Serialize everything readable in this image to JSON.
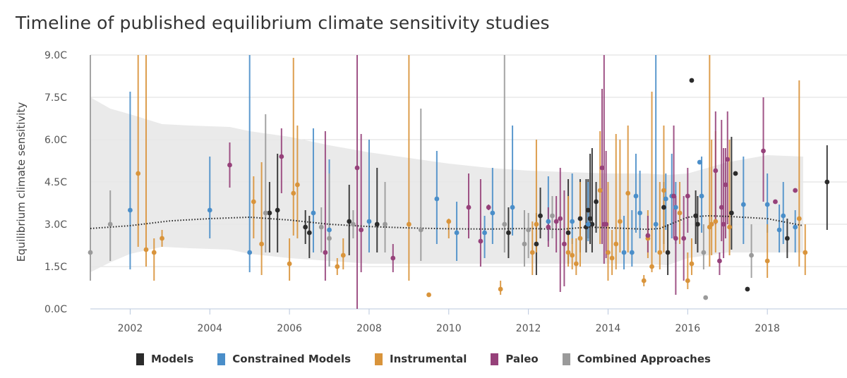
{
  "chart_data": {
    "type": "scatter",
    "title": "Timeline of published equilibrium climate sensitivity studies",
    "ylabel": "Equilibrium climate sensitivity",
    "xlabel": "",
    "xlim": [
      2001.0,
      2020.0
    ],
    "ylim": [
      0,
      9
    ],
    "x_ticks": [
      "2002",
      "2004",
      "2006",
      "2008",
      "2010",
      "2012",
      "2014",
      "2016",
      "2018"
    ],
    "y_ticks": [
      "0.0C",
      "1.5C",
      "3.0C",
      "4.5C",
      "6.0C",
      "7.5C",
      "9.0C"
    ],
    "grid": "horizontal",
    "legend_position": "bottom",
    "colors": {
      "Models": "#2b2b2b",
      "Constrained Models": "#4a8ec9",
      "Instrumental": "#d9943b",
      "Paleo": "#96417a",
      "Combined Approaches": "#9a9a9a",
      "band": "#e6e6e6",
      "trend": "#222222"
    },
    "legend": [
      "Models",
      "Constrained Models",
      "Instrumental",
      "Paleo",
      "Combined Approaches"
    ],
    "band": {
      "x": [
        2001.0,
        2001.5,
        2002.0,
        2002.8,
        2003.5,
        2004.5,
        2005.0,
        2006.0,
        2007.0,
        2008.0,
        2009.0,
        2010.0,
        2011.0,
        2012.0,
        2013.0,
        2014.0,
        2015.0,
        2015.5,
        2016.0,
        2017.0,
        2018.0,
        2018.9
      ],
      "upper": [
        7.5,
        7.1,
        6.9,
        6.55,
        6.5,
        6.45,
        6.3,
        6.1,
        5.8,
        5.55,
        5.35,
        5.15,
        5.0,
        4.9,
        4.85,
        4.8,
        4.8,
        4.75,
        4.8,
        5.2,
        5.45,
        5.4
      ],
      "lower": [
        1.3,
        1.65,
        1.95,
        2.2,
        2.15,
        2.1,
        1.95,
        1.8,
        1.7,
        1.6,
        1.6,
        1.6,
        1.6,
        1.6,
        1.6,
        1.6,
        1.6,
        1.55,
        1.8,
        2.0,
        2.0,
        2.0
      ]
    },
    "trend": {
      "x": [
        2001.0,
        2002.0,
        2003.0,
        2004.0,
        2005.0,
        2006.0,
        2007.0,
        2008.0,
        2009.0,
        2010.0,
        2011.0,
        2012.0,
        2012.8,
        2013.5,
        2014.5,
        2015.0,
        2015.3,
        2016.0,
        2016.5,
        2017.0,
        2018.0,
        2018.9
      ],
      "y": [
        2.85,
        2.95,
        3.12,
        3.2,
        3.25,
        3.15,
        3.0,
        2.92,
        2.87,
        2.84,
        2.83,
        2.85,
        2.82,
        2.9,
        2.85,
        2.82,
        2.85,
        3.25,
        3.3,
        3.28,
        3.2,
        2.95
      ]
    },
    "series": [
      {
        "name": "Models",
        "points": [
          [
            2005.5,
            3.4,
            2.0,
            4.5
          ],
          [
            2005.7,
            3.5,
            2.0,
            5.5
          ],
          [
            2006.4,
            2.9,
            2.3,
            3.5
          ],
          [
            2006.5,
            2.7,
            1.8,
            3.3
          ],
          [
            2007.5,
            3.1,
            1.9,
            4.4
          ],
          [
            2008.2,
            3.0,
            2.0,
            5.0
          ],
          [
            2011.5,
            2.7,
            1.8,
            3.6
          ],
          [
            2012.2,
            2.3,
            1.2,
            3.4
          ],
          [
            2012.3,
            3.3,
            2.5,
            4.3
          ],
          [
            2013.0,
            2.7,
            1.6,
            4.6
          ],
          [
            2013.3,
            3.2,
            2.0,
            4.6
          ],
          [
            2013.45,
            2.9,
            2.0,
            4.6
          ],
          [
            2013.5,
            3.5,
            2.5,
            4.6
          ],
          [
            2013.55,
            3.2,
            2.3,
            5.5
          ],
          [
            2013.6,
            3.0,
            2.0,
            5.7
          ],
          [
            2013.7,
            3.8,
            2.7,
            4.5
          ],
          [
            2015.4,
            3.6,
            2.3,
            4.5
          ],
          [
            2015.5,
            2.0,
            1.2,
            3.0
          ],
          [
            2016.1,
            8.1,
            8.1,
            8.1
          ],
          [
            2016.2,
            3.3,
            2.3,
            4.2
          ],
          [
            2016.25,
            3.0,
            2.0,
            4.0
          ],
          [
            2017.1,
            3.4,
            2.1,
            6.1
          ],
          [
            2017.2,
            4.8,
            4.8,
            4.8
          ],
          [
            2017.5,
            0.7,
            0.7,
            0.7
          ],
          [
            2018.5,
            2.5,
            1.8,
            3.2
          ],
          [
            2019.5,
            4.5,
            2.8,
            5.8
          ]
        ]
      },
      {
        "name": "Constrained Models",
        "points": [
          [
            2002.0,
            3.5,
            1.4,
            7.7
          ],
          [
            2004.0,
            3.5,
            2.5,
            5.4
          ],
          [
            2005.0,
            2.0,
            1.3,
            9.0
          ],
          [
            2006.6,
            3.4,
            2.0,
            6.4
          ],
          [
            2007.0,
            2.8,
            1.5,
            5.3
          ],
          [
            2008.0,
            3.1,
            2.0,
            6.0
          ],
          [
            2009.7,
            3.9,
            2.3,
            5.6
          ],
          [
            2010.2,
            2.7,
            1.7,
            3.8
          ],
          [
            2010.9,
            2.7,
            1.8,
            3.3
          ],
          [
            2011.1,
            3.4,
            2.3,
            5.0
          ],
          [
            2011.6,
            3.6,
            2.6,
            6.5
          ],
          [
            2012.5,
            3.1,
            2.4,
            4.7
          ],
          [
            2013.1,
            3.1,
            2.3,
            4.8
          ],
          [
            2013.5,
            3.0,
            2.4,
            4.5
          ],
          [
            2014.4,
            2.0,
            1.4,
            3.3
          ],
          [
            2014.6,
            2.0,
            1.5,
            3.5
          ],
          [
            2014.7,
            4.0,
            2.7,
            5.5
          ],
          [
            2014.8,
            3.4,
            2.5,
            4.9
          ],
          [
            2015.2,
            3.0,
            2.0,
            9.0
          ],
          [
            2015.45,
            3.9,
            2.8,
            4.8
          ],
          [
            2015.6,
            4.0,
            2.5,
            5.5
          ],
          [
            2015.7,
            3.6,
            2.3,
            4.5
          ],
          [
            2016.3,
            5.2,
            5.2,
            5.2
          ],
          [
            2016.35,
            4.0,
            2.7,
            5.4
          ],
          [
            2017.4,
            3.7,
            2.3,
            5.4
          ],
          [
            2018.0,
            3.7,
            2.7,
            4.8
          ],
          [
            2018.3,
            2.8,
            2.0,
            3.7
          ],
          [
            2018.4,
            3.3,
            2.3,
            4.5
          ],
          [
            2018.7,
            2.9,
            2.0,
            3.5
          ]
        ]
      },
      {
        "name": "Instrumental",
        "points": [
          [
            2002.2,
            4.8,
            2.2,
            9.0
          ],
          [
            2002.4,
            2.1,
            1.5,
            9.0
          ],
          [
            2002.6,
            2.0,
            1.0,
            2.5
          ],
          [
            2002.8,
            2.5,
            2.2,
            2.8
          ],
          [
            2005.1,
            3.8,
            2.5,
            4.7
          ],
          [
            2005.3,
            2.3,
            1.2,
            5.2
          ],
          [
            2006.0,
            1.6,
            1.0,
            2.5
          ],
          [
            2006.1,
            4.1,
            2.6,
            8.9
          ],
          [
            2006.2,
            4.4,
            2.5,
            6.5
          ],
          [
            2007.2,
            1.5,
            1.2,
            1.8
          ],
          [
            2007.35,
            1.9,
            1.4,
            2.5
          ],
          [
            2009.0,
            3.0,
            1.0,
            9.0
          ],
          [
            2009.5,
            0.5,
            0.5,
            0.5
          ],
          [
            2010.0,
            3.1,
            2.5,
            3.2
          ],
          [
            2011.3,
            0.7,
            0.5,
            1.0
          ],
          [
            2012.1,
            2.0,
            1.2,
            3.1
          ],
          [
            2012.2,
            3.0,
            2.0,
            6.0
          ],
          [
            2013.0,
            2.0,
            1.5,
            4.0
          ],
          [
            2013.1,
            1.9,
            1.4,
            2.5
          ],
          [
            2013.2,
            1.6,
            1.2,
            2.5
          ],
          [
            2013.3,
            2.5,
            1.5,
            4.5
          ],
          [
            2013.8,
            4.2,
            2.3,
            6.3
          ],
          [
            2014.0,
            2.0,
            1.0,
            4.5
          ],
          [
            2014.1,
            1.8,
            1.2,
            2.8
          ],
          [
            2014.2,
            2.3,
            1.4,
            6.2
          ],
          [
            2014.3,
            3.1,
            2.0,
            6.0
          ],
          [
            2014.5,
            4.1,
            2.0,
            6.5
          ],
          [
            2014.9,
            1.0,
            0.8,
            1.2
          ],
          [
            2015.0,
            2.5,
            1.8,
            3.5
          ],
          [
            2015.1,
            1.5,
            1.3,
            7.7
          ],
          [
            2015.3,
            2.0,
            1.4,
            4.5
          ],
          [
            2015.4,
            4.2,
            2.0,
            6.5
          ],
          [
            2015.8,
            3.4,
            2.3,
            4.5
          ],
          [
            2016.0,
            1.0,
            0.7,
            2.0
          ],
          [
            2016.1,
            1.6,
            1.2,
            2.5
          ],
          [
            2016.55,
            2.9,
            1.5,
            9.0
          ],
          [
            2016.6,
            3.0,
            1.9,
            6.0
          ],
          [
            2016.7,
            3.1,
            2.0,
            6.3
          ],
          [
            2017.05,
            2.9,
            1.9,
            6.0
          ],
          [
            2018.0,
            1.7,
            1.1,
            3.0
          ],
          [
            2018.8,
            3.2,
            1.5,
            8.1
          ],
          [
            2018.95,
            2.0,
            1.2,
            3.0
          ]
        ]
      },
      {
        "name": "Paleo",
        "points": [
          [
            2004.5,
            5.1,
            4.3,
            5.9
          ],
          [
            2005.8,
            5.4,
            4.1,
            6.4
          ],
          [
            2006.9,
            2.0,
            1.0,
            6.3
          ],
          [
            2007.7,
            5.0,
            0.0,
            9.0
          ],
          [
            2007.8,
            2.8,
            1.3,
            6.2
          ],
          [
            2008.6,
            1.8,
            1.3,
            2.3
          ],
          [
            2010.5,
            3.6,
            2.5,
            4.8
          ],
          [
            2010.8,
            2.4,
            1.5,
            4.6
          ],
          [
            2011.0,
            3.6,
            3.5,
            3.7
          ],
          [
            2012.5,
            2.9,
            2.2,
            3.6
          ],
          [
            2012.7,
            3.1,
            2.0,
            4.0
          ],
          [
            2012.8,
            3.2,
            0.6,
            5.0
          ],
          [
            2012.9,
            2.3,
            0.8,
            4.2
          ],
          [
            2013.85,
            5.0,
            2.3,
            7.8
          ],
          [
            2013.9,
            3.0,
            1.6,
            9.0
          ],
          [
            2013.95,
            3.0,
            1.8,
            5.6
          ],
          [
            2015.0,
            2.6,
            2.0,
            3.3
          ],
          [
            2015.65,
            4.0,
            2.5,
            6.5
          ],
          [
            2015.7,
            2.5,
            0.5,
            4.0
          ],
          [
            2015.9,
            2.5,
            1.0,
            4.0
          ],
          [
            2016.0,
            4.0,
            2.7,
            5.0
          ],
          [
            2016.7,
            4.9,
            3.0,
            7.0
          ],
          [
            2016.8,
            1.7,
            1.2,
            2.0
          ],
          [
            2016.85,
            3.6,
            2.4,
            6.7
          ],
          [
            2016.9,
            3.0,
            1.8,
            5.7
          ],
          [
            2016.95,
            4.4,
            2.5,
            5.7
          ],
          [
            2017.0,
            5.3,
            3.0,
            7.0
          ],
          [
            2017.9,
            5.6,
            3.8,
            7.5
          ],
          [
            2018.2,
            3.8,
            3.8,
            3.8
          ],
          [
            2018.7,
            4.2,
            4.2,
            4.2
          ]
        ]
      },
      {
        "name": "Combined Approaches",
        "points": [
          [
            2001.0,
            2.0,
            1.0,
            9.0
          ],
          [
            2001.5,
            3.0,
            1.7,
            4.2
          ],
          [
            2005.4,
            3.4,
            2.0,
            6.9
          ],
          [
            2006.8,
            2.9,
            2.0,
            3.6
          ],
          [
            2007.0,
            2.5,
            1.5,
            4.8
          ],
          [
            2007.6,
            3.0,
            2.5,
            3.5
          ],
          [
            2008.4,
            3.0,
            2.0,
            4.5
          ],
          [
            2009.3,
            2.8,
            1.7,
            7.1
          ],
          [
            2011.4,
            3.0,
            2.0,
            9.0
          ],
          [
            2011.9,
            2.3,
            1.5,
            3.5
          ],
          [
            2012.0,
            2.8,
            1.8,
            3.4
          ],
          [
            2012.6,
            3.3,
            2.5,
            4.0
          ],
          [
            2016.4,
            2.0,
            1.4,
            3.0
          ],
          [
            2016.45,
            0.4,
            0.4,
            0.4
          ],
          [
            2017.6,
            1.9,
            1.1,
            3.0
          ]
        ]
      }
    ]
  }
}
